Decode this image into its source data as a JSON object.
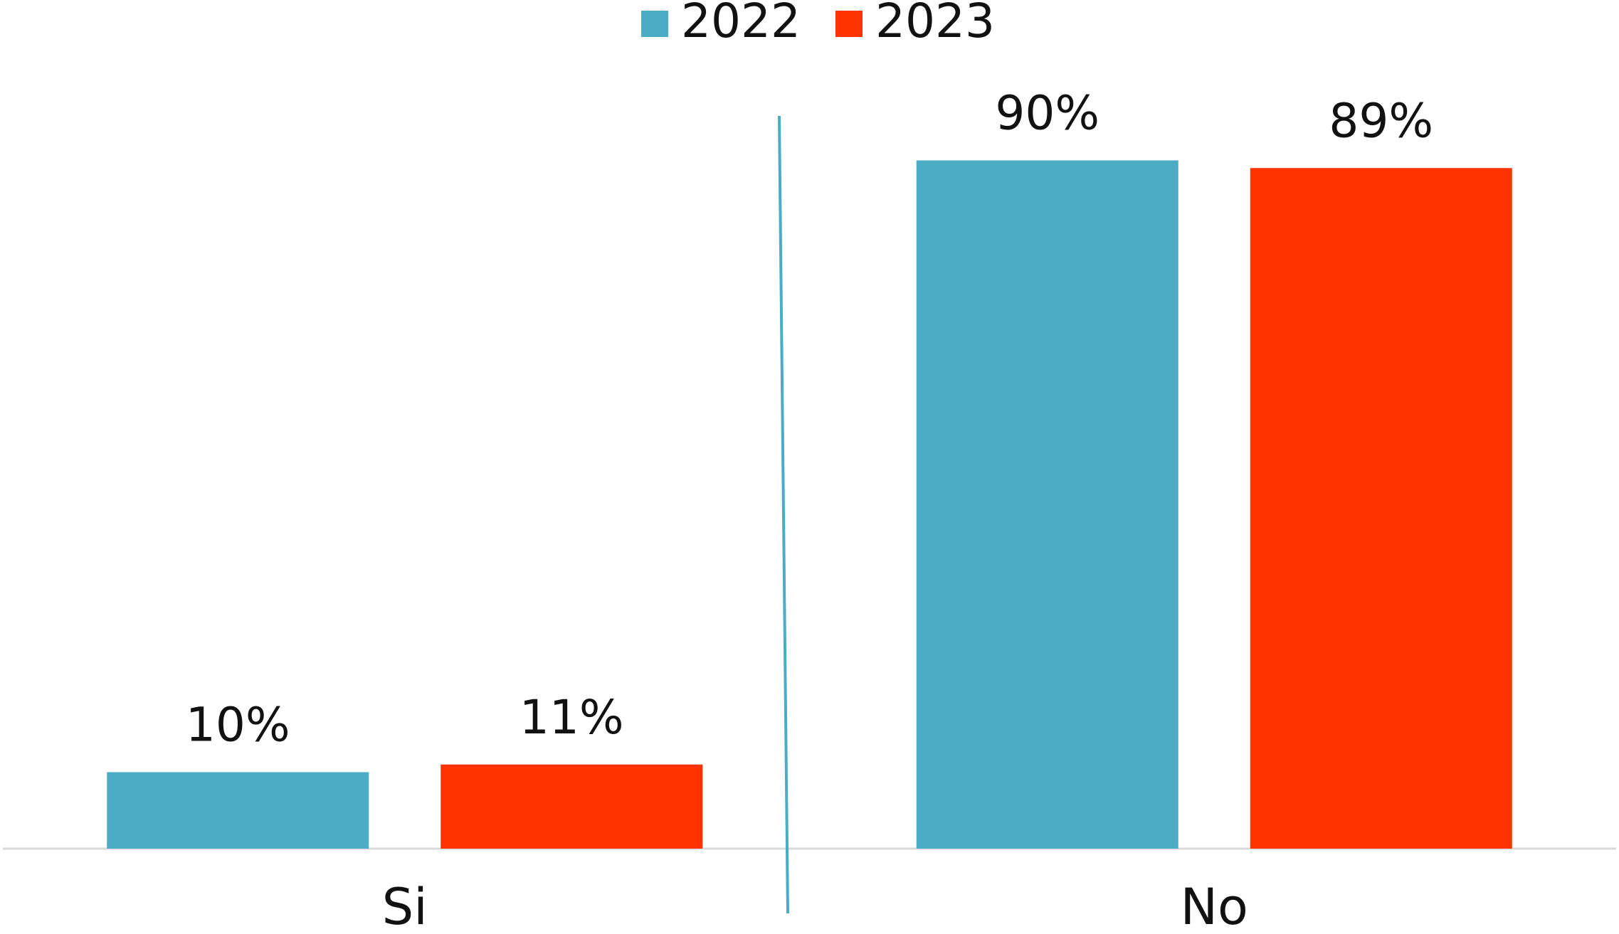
{
  "chart_data": {
    "type": "bar",
    "categories": [
      "Si",
      "No"
    ],
    "series": [
      {
        "name": "2022",
        "color": "#4BACC6",
        "values": [
          10,
          90
        ],
        "value_labels": [
          "10%",
          "90%"
        ]
      },
      {
        "name": "2023",
        "color": "#FF3300",
        "values": [
          11,
          89
        ],
        "value_labels": [
          "11%",
          "89%"
        ]
      }
    ],
    "ylim": [
      0,
      100
    ],
    "legend": "top"
  }
}
